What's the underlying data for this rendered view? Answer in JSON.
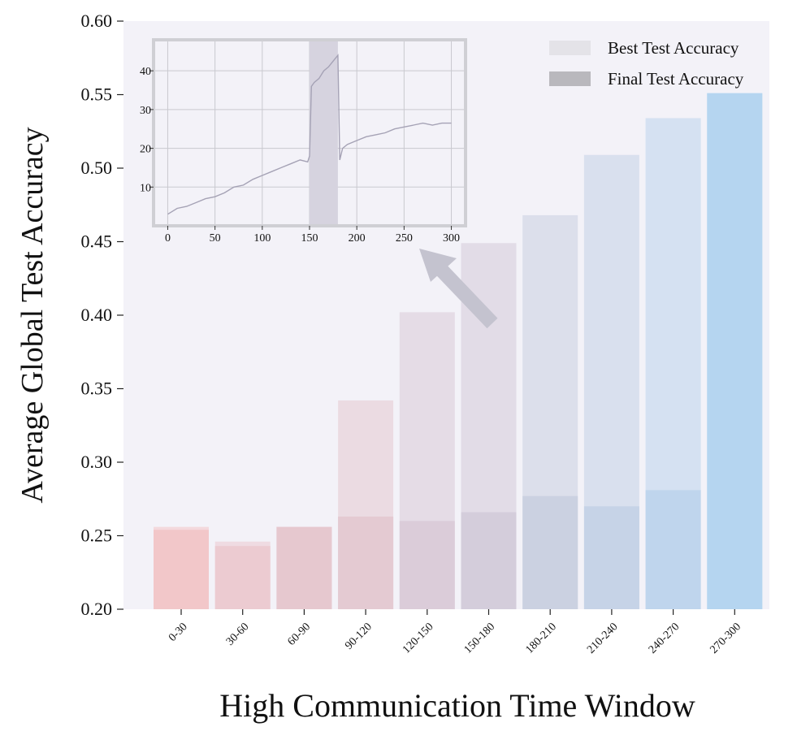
{
  "chart_data": [
    {
      "type": "bar",
      "xlabel": "High Communication Time Window",
      "ylabel": "Average Global Test Accuracy",
      "ylim": [
        0.2,
        0.6
      ],
      "yticks": [
        "0.20",
        "0.25",
        "0.30",
        "0.35",
        "0.40",
        "0.45",
        "0.50",
        "0.55",
        "0.60"
      ],
      "categories": [
        "0-30",
        "30-60",
        "60-90",
        "90-120",
        "120-150",
        "150-180",
        "180-210",
        "210-240",
        "240-270",
        "270-300"
      ],
      "series": [
        {
          "name": "Best Test Accuracy",
          "values": [
            0.256,
            0.246,
            0.256,
            0.342,
            0.402,
            0.449,
            0.468,
            0.509,
            0.534,
            0.551
          ]
        },
        {
          "name": "Final Test Accuracy",
          "values": [
            0.254,
            0.243,
            0.256,
            0.263,
            0.26,
            0.266,
            0.277,
            0.27,
            0.281,
            0.551
          ]
        }
      ],
      "bar_colors": [
        "#f2c4c6",
        "#ebc9cf",
        "#e5c5cd",
        "#e3c8d0",
        "#d9cad7",
        "#d3cbd9",
        "#c9cfe0",
        "#c3d2e6",
        "#bcd4ec",
        "#b1d4f0"
      ],
      "background": "#f3f2f8",
      "legend_position": "top-right",
      "grid": false
    },
    {
      "type": "line",
      "xlim": [
        -15,
        315
      ],
      "ylim": [
        0,
        48
      ],
      "xticks": [
        "0",
        "50",
        "100",
        "150",
        "200",
        "250",
        "300"
      ],
      "yticks": [
        "10",
        "20",
        "30",
        "40"
      ],
      "x": [
        0,
        10,
        20,
        30,
        40,
        50,
        60,
        70,
        80,
        90,
        100,
        110,
        120,
        130,
        140,
        148,
        150,
        152,
        155,
        160,
        165,
        170,
        175,
        180,
        182,
        185,
        190,
        200,
        210,
        220,
        230,
        240,
        250,
        260,
        270,
        280,
        290,
        300
      ],
      "y": [
        3,
        4.5,
        5,
        6,
        7,
        7.5,
        8.5,
        10,
        10.5,
        12,
        13,
        14,
        15,
        16,
        17,
        16.5,
        18,
        36,
        37,
        38,
        40,
        41,
        42.5,
        44,
        17,
        20,
        21,
        22,
        23,
        23.5,
        24,
        25,
        25.5,
        26,
        26.5,
        26,
        26.5,
        26.5
      ],
      "highlight_x": [
        150,
        180
      ],
      "line_color": "#a5a2b5",
      "grid": true
    }
  ]
}
